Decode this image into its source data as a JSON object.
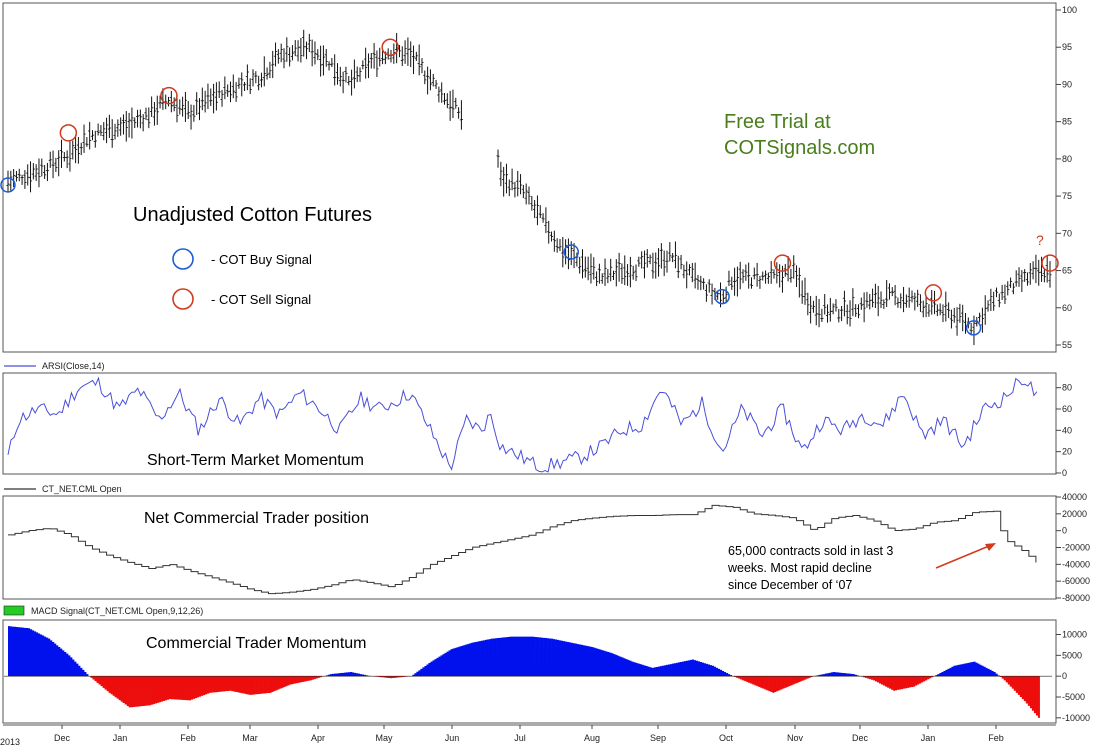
{
  "chart_data": [
    {
      "type": "ohlc",
      "title": "Unadjusted Cotton Futures",
      "promo": [
        "Free Trial at",
        "COTSignals.com"
      ],
      "legend": [
        {
          "label": "- COT Buy Signal",
          "color": "#1e5bd6"
        },
        {
          "label": "- COT Sell Signal",
          "color": "#d23a1e"
        }
      ],
      "question_mark": "?",
      "ylim": [
        55,
        100
      ],
      "y_ticks": [
        55,
        60,
        65,
        70,
        75,
        80,
        85,
        90,
        95,
        100
      ],
      "y_tick_labels": [
        "55",
        "60",
        "65",
        "70",
        "75",
        "80",
        "85",
        "90",
        "95",
        "100"
      ],
      "price_path": [
        [
          0,
          77
        ],
        [
          10,
          78
        ],
        [
          20,
          79
        ],
        [
          30,
          80.5
        ],
        [
          40,
          83
        ],
        [
          50,
          84
        ],
        [
          60,
          84.5
        ],
        [
          70,
          86
        ],
        [
          80,
          88
        ],
        [
          90,
          86
        ],
        [
          100,
          88
        ],
        [
          115,
          90
        ],
        [
          125,
          91
        ],
        [
          135,
          94
        ],
        [
          150,
          95
        ],
        [
          160,
          93
        ],
        [
          170,
          90
        ],
        [
          180,
          93
        ],
        [
          190,
          94.5
        ],
        [
          200,
          94
        ],
        [
          215,
          89
        ],
        [
          225,
          86
        ],
        [
          240,
          86.5
        ],
        [
          245,
          77.5
        ],
        [
          255,
          76
        ],
        [
          265,
          72
        ],
        [
          275,
          68
        ],
        [
          285,
          66
        ],
        [
          295,
          64
        ],
        [
          305,
          65
        ],
        [
          320,
          66
        ],
        [
          330,
          67
        ],
        [
          340,
          64
        ],
        [
          350,
          62
        ],
        [
          355,
          61.5
        ],
        [
          360,
          64
        ],
        [
          370,
          64
        ],
        [
          380,
          64
        ],
        [
          390,
          65
        ],
        [
          400,
          60
        ],
        [
          410,
          59.5
        ],
        [
          420,
          60
        ],
        [
          430,
          61
        ],
        [
          440,
          61.5
        ],
        [
          450,
          61
        ],
        [
          460,
          60
        ],
        [
          470,
          59
        ],
        [
          480,
          57.5
        ],
        [
          490,
          61
        ],
        [
          500,
          63
        ],
        [
          510,
          64.5
        ],
        [
          518,
          65
        ]
      ],
      "buy_signals": [
        [
          0,
          76.5
        ],
        [
          280,
          67.5
        ],
        [
          355,
          61.5
        ],
        [
          480,
          57.3
        ]
      ],
      "sell_signals": [
        [
          30,
          83.5
        ],
        [
          80,
          88.5
        ],
        [
          190,
          95
        ],
        [
          385,
          66
        ],
        [
          460,
          62
        ],
        [
          518,
          66
        ]
      ]
    },
    {
      "type": "line",
      "name": "ARSI(Close,14)",
      "caption": "Short-Term Market Momentum",
      "ylim": [
        0,
        90
      ],
      "y_ticks": [
        0,
        20,
        40,
        60,
        80
      ],
      "y_tick_labels": [
        "0",
        "20",
        "40",
        "60",
        "80"
      ],
      "color": "#4a4fd8",
      "path": [
        [
          0,
          15
        ],
        [
          5,
          50
        ],
        [
          15,
          60
        ],
        [
          25,
          55
        ],
        [
          35,
          80
        ],
        [
          45,
          85
        ],
        [
          55,
          60
        ],
        [
          65,
          78
        ],
        [
          75,
          50
        ],
        [
          85,
          75
        ],
        [
          95,
          40
        ],
        [
          105,
          70
        ],
        [
          115,
          45
        ],
        [
          125,
          70
        ],
        [
          135,
          55
        ],
        [
          145,
          75
        ],
        [
          155,
          60
        ],
        [
          165,
          40
        ],
        [
          175,
          70
        ],
        [
          185,
          60
        ],
        [
          200,
          75
        ],
        [
          210,
          40
        ],
        [
          220,
          5
        ],
        [
          228,
          50
        ],
        [
          235,
          40
        ],
        [
          240,
          55
        ],
        [
          245,
          25
        ],
        [
          255,
          15
        ],
        [
          265,
          5
        ],
        [
          275,
          10
        ],
        [
          285,
          15
        ],
        [
          295,
          25
        ],
        [
          305,
          40
        ],
        [
          315,
          45
        ],
        [
          325,
          80
        ],
        [
          335,
          45
        ],
        [
          345,
          65
        ],
        [
          355,
          20
        ],
        [
          365,
          60
        ],
        [
          375,
          35
        ],
        [
          385,
          60
        ],
        [
          395,
          20
        ],
        [
          405,
          50
        ],
        [
          415,
          40
        ],
        [
          425,
          55
        ],
        [
          435,
          45
        ],
        [
          445,
          75
        ],
        [
          455,
          35
        ],
        [
          465,
          50
        ],
        [
          475,
          25
        ],
        [
          485,
          60
        ],
        [
          495,
          70
        ],
        [
          505,
          90
        ],
        [
          512,
          70
        ]
      ]
    },
    {
      "type": "line",
      "name": "CT_NET.CML Open",
      "caption": "Net Commercial Trader position",
      "annotation": [
        "65,000 contracts sold in last 3",
        "weeks. Most rapid decline",
        "since December of ‘07"
      ],
      "ylim": [
        -80000,
        40000
      ],
      "y_ticks": [
        -80000,
        -60000,
        -40000,
        -20000,
        0,
        20000,
        40000
      ],
      "y_tick_labels": [
        "-80000",
        "-60000",
        "-40000",
        "-20000",
        "0",
        "20000",
        "40000"
      ],
      "color": "#333333",
      "path": [
        [
          0,
          -5000
        ],
        [
          10,
          0
        ],
        [
          20,
          3000
        ],
        [
          30,
          -5000
        ],
        [
          40,
          -20000
        ],
        [
          50,
          -30000
        ],
        [
          60,
          -38000
        ],
        [
          70,
          -45000
        ],
        [
          80,
          -40000
        ],
        [
          90,
          -48000
        ],
        [
          100,
          -55000
        ],
        [
          110,
          -62000
        ],
        [
          120,
          -70000
        ],
        [
          130,
          -75000
        ],
        [
          140,
          -73000
        ],
        [
          150,
          -70000
        ],
        [
          160,
          -65000
        ],
        [
          170,
          -58000
        ],
        [
          180,
          -62000
        ],
        [
          190,
          -67000
        ],
        [
          200,
          -55000
        ],
        [
          210,
          -40000
        ],
        [
          220,
          -30000
        ],
        [
          230,
          -20000
        ],
        [
          240,
          -15000
        ],
        [
          250,
          -10000
        ],
        [
          260,
          -5000
        ],
        [
          270,
          5000
        ],
        [
          280,
          12000
        ],
        [
          290,
          15000
        ],
        [
          300,
          17000
        ],
        [
          310,
          18000
        ],
        [
          320,
          18000
        ],
        [
          330,
          19000
        ],
        [
          340,
          19000
        ],
        [
          350,
          30000
        ],
        [
          360,
          28000
        ],
        [
          370,
          20000
        ],
        [
          380,
          18000
        ],
        [
          390,
          15000
        ],
        [
          400,
          0
        ],
        [
          410,
          15000
        ],
        [
          420,
          18000
        ],
        [
          430,
          12000
        ],
        [
          440,
          0
        ],
        [
          450,
          2000
        ],
        [
          460,
          10000
        ],
        [
          470,
          12000
        ],
        [
          480,
          22000
        ],
        [
          490,
          23000
        ],
        [
          495,
          -10000
        ],
        [
          505,
          -25000
        ],
        [
          512,
          -40000
        ]
      ]
    },
    {
      "type": "area",
      "name": "MACD Signal(CT_NET.CML Open,9,12,26)",
      "caption": "Commercial Trader Momentum",
      "ylim": [
        -11000,
        13000
      ],
      "y_ticks": [
        -10000,
        -5000,
        0,
        5000,
        10000
      ],
      "y_tick_labels": [
        "-10000",
        "-5000",
        "0",
        "5000",
        "10000"
      ],
      "positive_color": "#0011ee",
      "negative_color": "#ee0d0d",
      "legend_swatch_color": "#22cc22",
      "path": [
        [
          0,
          12000
        ],
        [
          10,
          11500
        ],
        [
          20,
          9000
        ],
        [
          30,
          5000
        ],
        [
          40,
          0
        ],
        [
          50,
          -4000
        ],
        [
          60,
          -7500
        ],
        [
          70,
          -7000
        ],
        [
          80,
          -5500
        ],
        [
          90,
          -5800
        ],
        [
          100,
          -4000
        ],
        [
          110,
          -3500
        ],
        [
          120,
          -4500
        ],
        [
          130,
          -4000
        ],
        [
          140,
          -2000
        ],
        [
          150,
          -1000
        ],
        [
          160,
          500
        ],
        [
          170,
          1000
        ],
        [
          180,
          0
        ],
        [
          190,
          -500
        ],
        [
          200,
          0
        ],
        [
          210,
          3500
        ],
        [
          220,
          6500
        ],
        [
          230,
          8000
        ],
        [
          240,
          9000
        ],
        [
          250,
          9500
        ],
        [
          260,
          9500
        ],
        [
          270,
          9000
        ],
        [
          280,
          8000
        ],
        [
          290,
          7000
        ],
        [
          300,
          5500
        ],
        [
          310,
          3500
        ],
        [
          320,
          2000
        ],
        [
          330,
          3000
        ],
        [
          340,
          4000
        ],
        [
          350,
          2500
        ],
        [
          360,
          0
        ],
        [
          370,
          -2000
        ],
        [
          380,
          -4000
        ],
        [
          390,
          -2000
        ],
        [
          400,
          0
        ],
        [
          410,
          1000
        ],
        [
          420,
          500
        ],
        [
          430,
          -1000
        ],
        [
          440,
          -3500
        ],
        [
          450,
          -2500
        ],
        [
          460,
          0
        ],
        [
          470,
          2500
        ],
        [
          480,
          3500
        ],
        [
          490,
          1000
        ],
        [
          495,
          -1000
        ],
        [
          505,
          -6000
        ],
        [
          512,
          -10000
        ]
      ]
    }
  ],
  "x_axis": {
    "year_label": "2013",
    "months": [
      "Dec",
      "Jan",
      "Feb",
      "Mar",
      "Apr",
      "May",
      "Jun",
      "Jul",
      "Aug",
      "Sep",
      "Oct",
      "Nov",
      "Dec",
      "Jan",
      "Feb"
    ]
  }
}
